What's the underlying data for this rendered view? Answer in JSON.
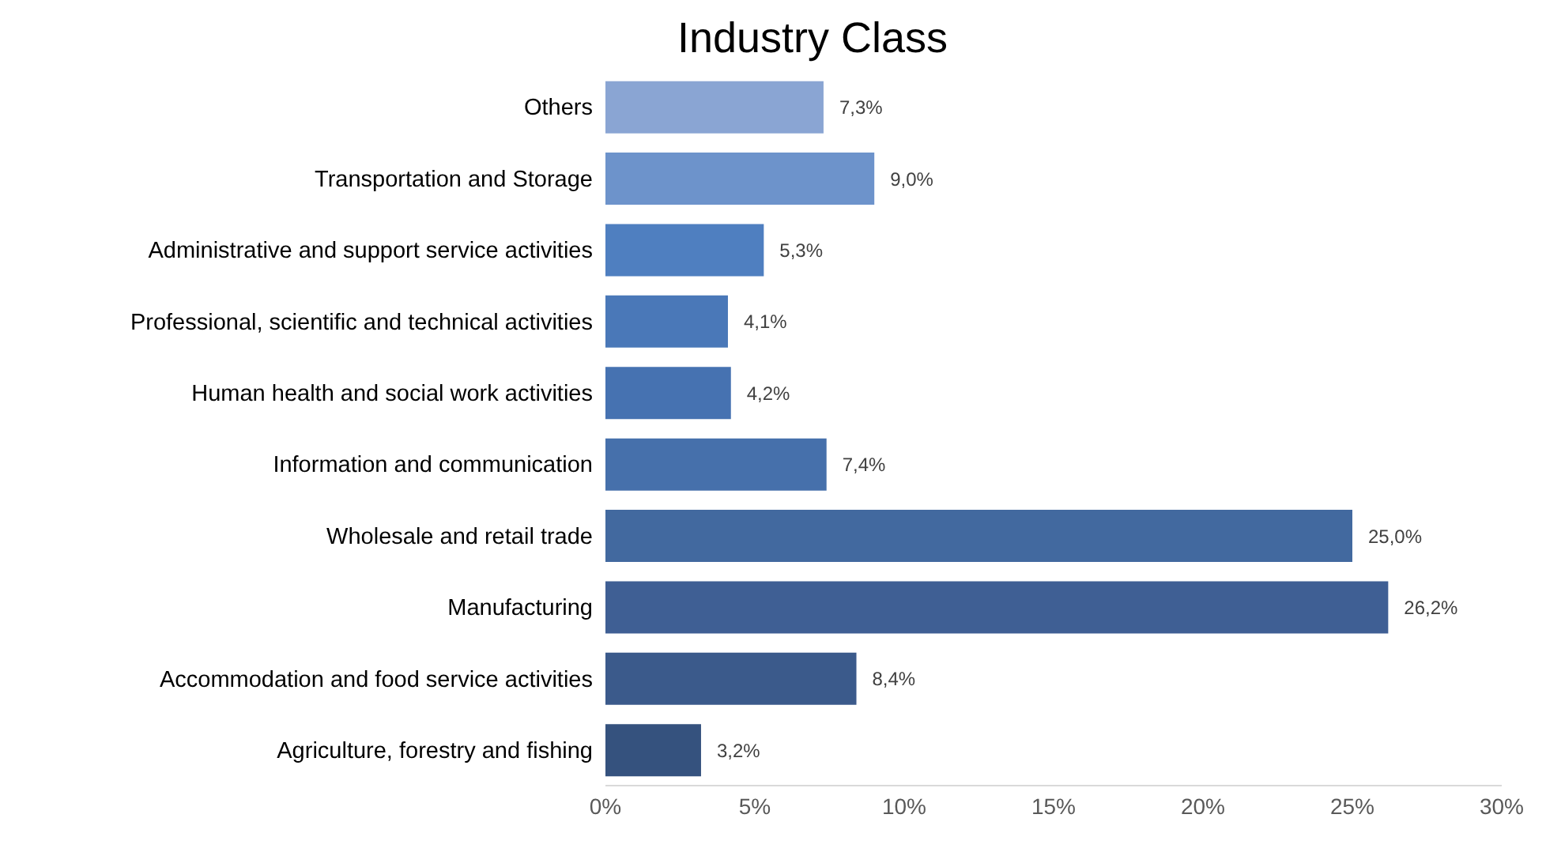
{
  "chart_data": {
    "type": "bar",
    "orientation": "horizontal",
    "title": "Industry Class",
    "categories": [
      "Others",
      "Transportation and Storage",
      "Administrative and support service activities",
      "Professional, scientific and technical activities",
      "Human health and social work activities",
      "Information and communication",
      "Wholesale and retail trade",
      "Manufacturing",
      "Accommodation and food service activities",
      "Agriculture, forestry and fishing"
    ],
    "values": [
      7.3,
      9.0,
      5.3,
      4.1,
      4.2,
      7.4,
      25.0,
      26.2,
      8.4,
      3.2
    ],
    "value_labels": [
      "7,3%",
      "9,0%",
      "5,3%",
      "4,1%",
      "4,2%",
      "7,4%",
      "25,0%",
      "26,2%",
      "8,4%",
      "3,2%"
    ],
    "colors": [
      "#8aa5d3",
      "#6d93cb",
      "#4f7fc0",
      "#4a78b8",
      "#4672b1",
      "#4670ab",
      "#42699f",
      "#3f5f94",
      "#3b5a8b",
      "#35527e"
    ],
    "xlim": [
      0,
      30
    ],
    "xticks": [
      {
        "value": 0,
        "label": "0%"
      },
      {
        "value": 5,
        "label": "5%"
      },
      {
        "value": 10,
        "label": "10%"
      },
      {
        "value": 15,
        "label": "15%"
      },
      {
        "value": 20,
        "label": "20%"
      },
      {
        "value": 25,
        "label": "25%"
      },
      {
        "value": 30,
        "label": "30%"
      }
    ],
    "grid": false,
    "legend": false
  }
}
